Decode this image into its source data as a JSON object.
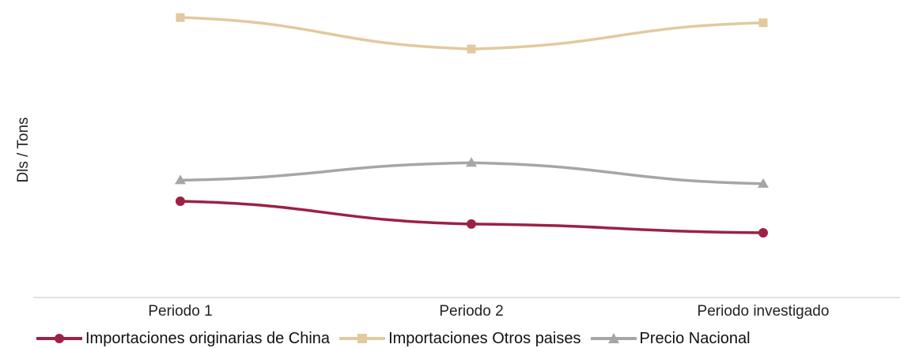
{
  "chart_data": {
    "type": "line",
    "title": "",
    "xlabel": "",
    "ylabel": "Dls / Tons",
    "categories": [
      "Periodo 1",
      "Periodo 2",
      "Periodo investigado"
    ],
    "series": [
      {
        "name": "Importaciones originarias de China",
        "values": [
          55,
          42,
          37
        ],
        "color": "#9b2245",
        "marker": "circle"
      },
      {
        "name": "Importaciones Otros paises",
        "values": [
          160,
          142,
          157
        ],
        "color": "#e2c99e",
        "marker": "square"
      },
      {
        "name": "Precio Nacional",
        "values": [
          67,
          77,
          65
        ],
        "color": "#a6a6a6",
        "marker": "triangle"
      }
    ],
    "ylim": [
      0,
      170
    ],
    "grid": false,
    "legend_position": "bottom"
  }
}
